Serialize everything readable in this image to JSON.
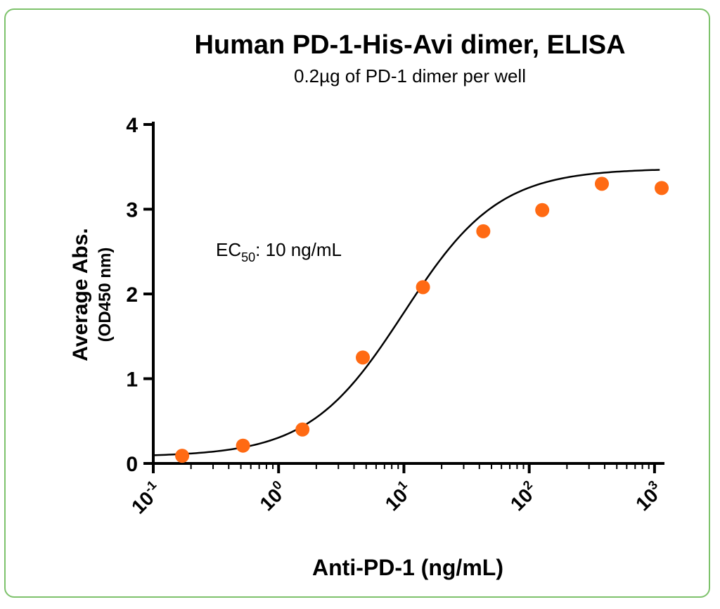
{
  "chart_data": {
    "type": "scatter",
    "title": "Human PD-1-His-Avi dimer, ELISA",
    "subtitle": "0.2µg of PD-1 dimer per well",
    "xlabel": "Anti-PD-1 (ng/mL)",
    "ylabel": "Average Abs.",
    "ylabel_unit": "(OD450 nm)",
    "x_scale": "log10",
    "xlim": [
      0.1,
      1200
    ],
    "ylim": [
      0,
      4
    ],
    "x_ticks": [
      {
        "base": "10",
        "exp": "-1",
        "value": 0.1
      },
      {
        "base": "10",
        "exp": "0",
        "value": 1
      },
      {
        "base": "10",
        "exp": "1",
        "value": 10
      },
      {
        "base": "10",
        "exp": "2",
        "value": 100
      },
      {
        "base": "10",
        "exp": "3",
        "value": 1000
      }
    ],
    "y_ticks": [
      "0",
      "1",
      "2",
      "3",
      "4"
    ],
    "annotation": {
      "prefix": "EC",
      "sub": "50",
      "suffix": ": 10 ng/mL"
    },
    "series": [
      {
        "points": [
          {
            "x": 0.17,
            "y": 0.09
          },
          {
            "x": 0.52,
            "y": 0.21
          },
          {
            "x": 1.55,
            "y": 0.4
          },
          {
            "x": 4.7,
            "y": 1.25
          },
          {
            "x": 14.2,
            "y": 2.08
          },
          {
            "x": 43,
            "y": 2.74
          },
          {
            "x": 127,
            "y": 2.99
          },
          {
            "x": 380,
            "y": 3.3
          },
          {
            "x": 1140,
            "y": 3.25
          }
        ],
        "color": "#ff6a13"
      }
    ],
    "fit_curve": {
      "model": "4PL",
      "bottom": 0.08,
      "top": 3.48,
      "ec50": 10,
      "hill": 1.15,
      "color": "#000000"
    },
    "grid": false
  }
}
